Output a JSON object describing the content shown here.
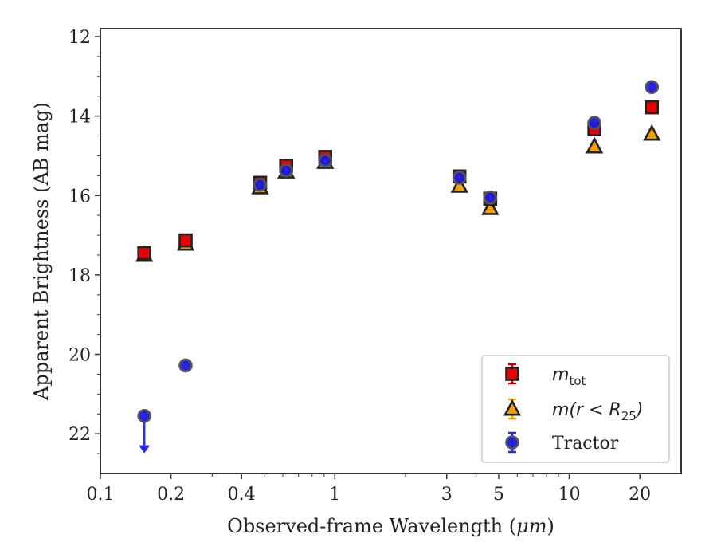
{
  "chart_data": {
    "type": "scatter",
    "xlabel_prefix": "Observed-frame Wavelength (",
    "xlabel_unit": "μm",
    "xlabel_suffix": ")",
    "ylabel": "Apparent Brightness (AB mag)",
    "x_scale": "log",
    "xlim": [
      0.1,
      30
    ],
    "ylim": [
      23,
      11.8
    ],
    "y_inverted": true,
    "x_ticks": [
      0.1,
      0.2,
      0.4,
      1,
      3,
      5,
      10,
      20
    ],
    "x_tick_labels": [
      "0.1",
      "0.2",
      "0.4",
      "1",
      "3",
      "5",
      "10",
      "20"
    ],
    "y_ticks": [
      12,
      14,
      16,
      18,
      20,
      22
    ],
    "y_tick_labels": [
      "12",
      "14",
      "16",
      "18",
      "20",
      "22"
    ],
    "grid": false,
    "legend_position": "lower-right",
    "series": [
      {
        "key": "m_tot",
        "name": "m",
        "name_sub": "tot",
        "marker": "square",
        "color": "#ee0000",
        "errcolor": "#cc0000",
        "points": [
          {
            "x": 0.154,
            "y": 17.45
          },
          {
            "x": 0.231,
            "y": 17.13
          },
          {
            "x": 0.48,
            "y": 15.68
          },
          {
            "x": 0.62,
            "y": 15.25
          },
          {
            "x": 0.91,
            "y": 15.03
          },
          {
            "x": 3.4,
            "y": 15.52
          },
          {
            "x": 4.6,
            "y": 16.08
          },
          {
            "x": 12.8,
            "y": 14.33
          },
          {
            "x": 22.5,
            "y": 13.78
          }
        ]
      },
      {
        "key": "m_r25",
        "name": "m(r < R",
        "name_sub": "25",
        "name_end": ")",
        "marker": "triangle",
        "color": "#f5a000",
        "errcolor": "#f5a000",
        "points": [
          {
            "x": 0.154,
            "y": 17.5
          },
          {
            "x": 0.231,
            "y": 17.22
          },
          {
            "x": 0.48,
            "y": 15.8
          },
          {
            "x": 0.62,
            "y": 15.4
          },
          {
            "x": 0.91,
            "y": 15.16
          },
          {
            "x": 3.4,
            "y": 15.76
          },
          {
            "x": 4.6,
            "y": 16.32
          },
          {
            "x": 12.8,
            "y": 14.77
          },
          {
            "x": 22.5,
            "y": 14.45
          }
        ]
      },
      {
        "key": "tractor",
        "name": "Tractor",
        "marker": "circle",
        "color": "#1a1adc",
        "errcolor": "#2a2ae0",
        "points": [
          {
            "x": 0.154,
            "y": 21.55,
            "upper_limit": true,
            "limit_to": 22.45
          },
          {
            "x": 0.231,
            "y": 20.28
          },
          {
            "x": 0.48,
            "y": 15.73
          },
          {
            "x": 0.62,
            "y": 15.37
          },
          {
            "x": 0.91,
            "y": 15.12
          },
          {
            "x": 3.4,
            "y": 15.55
          },
          {
            "x": 4.6,
            "y": 16.05
          },
          {
            "x": 12.8,
            "y": 14.17
          },
          {
            "x": 22.5,
            "y": 13.27
          }
        ]
      }
    ]
  }
}
